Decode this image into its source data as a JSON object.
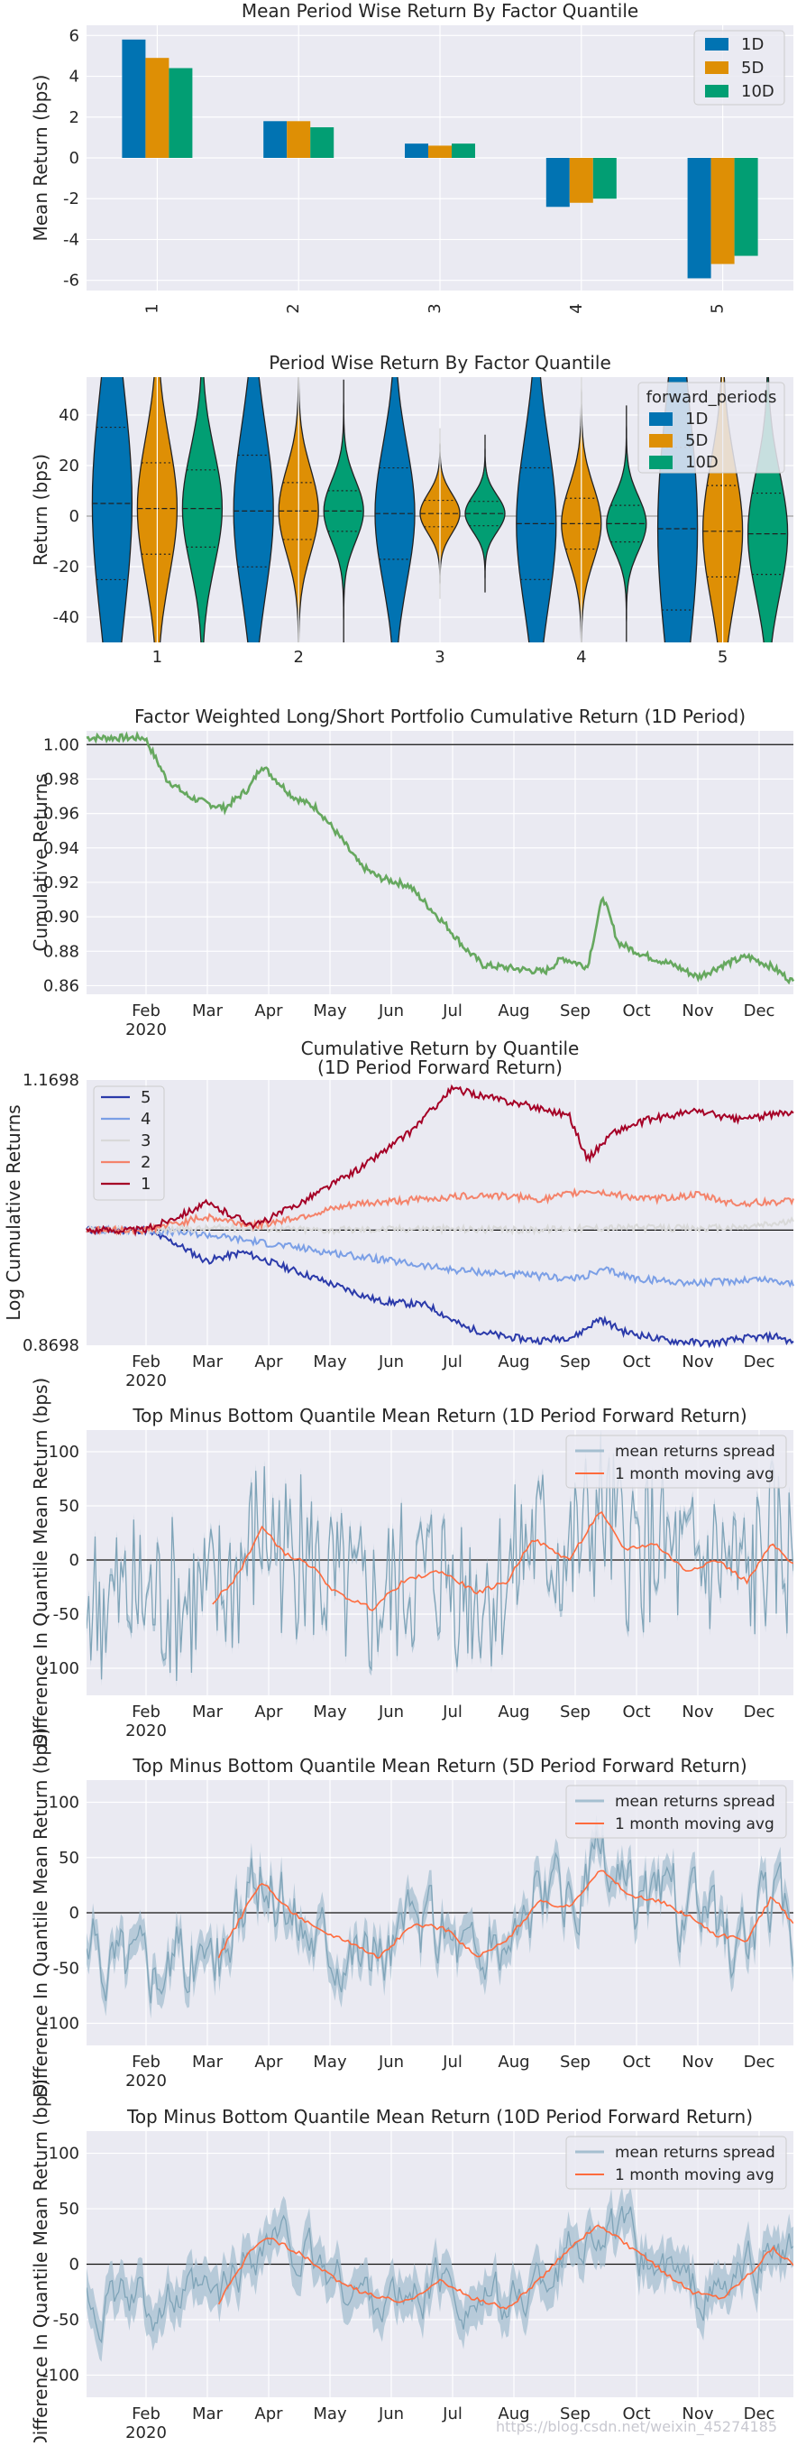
{
  "colors": {
    "bg": "#eaeaf2",
    "grid": "#ffffff",
    "text": "#262626",
    "q1D": "#0173b2",
    "q5D": "#de8f05",
    "q10D": "#029e73",
    "cum": "#66a85f",
    "spread": "#7fa4b8",
    "band": "#a5bfd0",
    "mavg": "#ff6b3d",
    "quant": [
      "#a50026",
      "#f4836b",
      "#d9d9d9",
      "#7b9fe6",
      "#2b3aaa"
    ]
  },
  "watermark": "https://blog.csdn.net/weixin_45274185",
  "chart_data": [
    {
      "type": "bar",
      "title": "Mean Period Wise Return By Factor Quantile",
      "ylabel": "Mean Return (bps)",
      "xlabel": "",
      "categories": [
        "1",
        "2",
        "3",
        "4",
        "5"
      ],
      "series": [
        {
          "name": "1D",
          "values": [
            5.8,
            1.8,
            0.7,
            -2.4,
            -5.9
          ]
        },
        {
          "name": "5D",
          "values": [
            4.9,
            1.8,
            0.6,
            -2.2,
            -5.2
          ]
        },
        {
          "name": "10D",
          "values": [
            4.4,
            1.5,
            0.7,
            -2.0,
            -4.8
          ]
        }
      ],
      "ylim": [
        -6.5,
        6.5
      ],
      "yticks": [
        "-6",
        "-4",
        "-2",
        "0",
        "2",
        "4",
        "6"
      ],
      "legend": "top-right"
    },
    {
      "type": "violin",
      "title": "Period Wise Return By Factor Quantile",
      "ylabel": "Return (bps)",
      "categories": [
        "1",
        "2",
        "3",
        "4",
        "5"
      ],
      "series_names": [
        "1D",
        "5D",
        "10D"
      ],
      "legend_title": "forward_periods",
      "ylim": [
        -50,
        55
      ],
      "yticks": [
        "-40",
        "-20",
        "0",
        "20",
        "40"
      ],
      "spread": [
        [
          75,
          45,
          38
        ],
        [
          55,
          28,
          20
        ],
        [
          45,
          13,
          12
        ],
        [
          55,
          25,
          18
        ],
        [
          80,
          45,
          40
        ]
      ],
      "center": [
        [
          5,
          3,
          3
        ],
        [
          2,
          2,
          2
        ],
        [
          1,
          1,
          1
        ],
        [
          -3,
          -3,
          -3
        ],
        [
          -5,
          -6,
          -7
        ]
      ],
      "legend": "top-right"
    },
    {
      "type": "line",
      "title": "Factor Weighted Long/Short Portfolio Cumulative Return (1D Period)",
      "ylabel": "Cumulative Returns",
      "ylim": [
        0.855,
        1.008
      ],
      "yticks": [
        "0.86",
        "0.88",
        "0.90",
        "0.92",
        "0.94",
        "0.96",
        "0.98",
        "1.00"
      ],
      "xticks": [
        "Feb\n2020",
        "Mar",
        "Apr",
        "May",
        "Jun",
        "Jul",
        "Aug",
        "Sep",
        "Oct",
        "Nov",
        "Dec"
      ],
      "keypoints": [
        [
          0,
          1.004
        ],
        [
          0.1,
          0.997
        ],
        [
          0.35,
          0.98
        ],
        [
          0.7,
          0.97
        ],
        [
          1.0,
          0.966
        ],
        [
          1.3,
          0.963
        ],
        [
          1.7,
          0.975
        ],
        [
          1.9,
          0.988
        ],
        [
          2.4,
          0.97
        ],
        [
          2.8,
          0.963
        ],
        [
          3.2,
          0.945
        ],
        [
          3.5,
          0.93
        ],
        [
          3.8,
          0.923
        ],
        [
          4.3,
          0.918
        ],
        [
          4.9,
          0.895
        ],
        [
          5.2,
          0.882
        ],
        [
          5.5,
          0.872
        ],
        [
          6.0,
          0.87
        ],
        [
          6.5,
          0.868
        ],
        [
          6.8,
          0.876
        ],
        [
          7.2,
          0.871
        ],
        [
          7.45,
          0.912
        ],
        [
          7.7,
          0.885
        ],
        [
          8.1,
          0.878
        ],
        [
          8.6,
          0.872
        ],
        [
          9.0,
          0.865
        ],
        [
          9.4,
          0.872
        ],
        [
          9.8,
          0.877
        ],
        [
          10.2,
          0.871
        ],
        [
          10.55,
          0.862
        ]
      ]
    },
    {
      "type": "line",
      "title": "Cumulative Return by Quantile",
      "title2": "(1D Period Forward Return)",
      "ylabel": "Log Cumulative Returns",
      "ylim": [
        0.8698,
        1.1698
      ],
      "yticks": [
        "0.8698",
        "1.1698"
      ],
      "xticks": [
        "Feb\n2020",
        "Mar",
        "Apr",
        "May",
        "Jun",
        "Jul",
        "Aug",
        "Sep",
        "Oct",
        "Nov",
        "Dec"
      ],
      "legend_labels": [
        "5",
        "4",
        "3",
        "2",
        "1"
      ],
      "series": [
        {
          "name": "1",
          "keypoints": [
            [
              0,
              1.0
            ],
            [
              1.0,
              1.03
            ],
            [
              1.8,
              1.005
            ],
            [
              2.5,
              1.03
            ],
            [
              3.5,
              1.07
            ],
            [
              4.3,
              1.11
            ],
            [
              5.0,
              1.16
            ],
            [
              5.6,
              1.15
            ],
            [
              6.3,
              1.14
            ],
            [
              6.9,
              1.13
            ],
            [
              7.2,
              1.08
            ],
            [
              7.6,
              1.11
            ],
            [
              8.2,
              1.125
            ],
            [
              9.0,
              1.135
            ],
            [
              9.6,
              1.125
            ],
            [
              10.2,
              1.13
            ],
            [
              10.55,
              1.135
            ]
          ]
        },
        {
          "name": "2",
          "keypoints": [
            [
              0,
              1.0
            ],
            [
              1.0,
              1.015
            ],
            [
              1.8,
              1.005
            ],
            [
              2.5,
              1.015
            ],
            [
              3.5,
              1.03
            ],
            [
              4.5,
              1.035
            ],
            [
              5.5,
              1.04
            ],
            [
              6.5,
              1.035
            ],
            [
              7.2,
              1.045
            ],
            [
              8.2,
              1.035
            ],
            [
              9.0,
              1.04
            ],
            [
              9.6,
              1.03
            ],
            [
              10.55,
              1.033
            ]
          ]
        },
        {
          "name": "3",
          "keypoints": [
            [
              0,
              1.0
            ],
            [
              1.5,
              1.003
            ],
            [
              3.0,
              1.0
            ],
            [
              4.5,
              1.002
            ],
            [
              6.0,
              1.0
            ],
            [
              7.5,
              1.003
            ],
            [
              9.0,
              1.002
            ],
            [
              9.7,
              1.003
            ],
            [
              10.55,
              1.01
            ]
          ]
        },
        {
          "name": "4",
          "keypoints": [
            [
              0,
              1.0
            ],
            [
              1.0,
              0.995
            ],
            [
              2.0,
              0.985
            ],
            [
              3.0,
              0.975
            ],
            [
              4.0,
              0.965
            ],
            [
              5.0,
              0.955
            ],
            [
              6.0,
              0.95
            ],
            [
              7.0,
              0.945
            ],
            [
              7.5,
              0.955
            ],
            [
              8.0,
              0.945
            ],
            [
              9.0,
              0.94
            ],
            [
              10.0,
              0.945
            ],
            [
              10.55,
              0.94
            ]
          ]
        },
        {
          "name": "5",
          "keypoints": [
            [
              0,
              1.0
            ],
            [
              0.5,
              0.985
            ],
            [
              1.0,
              0.965
            ],
            [
              1.6,
              0.975
            ],
            [
              2.2,
              0.96
            ],
            [
              3.0,
              0.94
            ],
            [
              3.8,
              0.92
            ],
            [
              4.6,
              0.915
            ],
            [
              5.2,
              0.89
            ],
            [
              5.8,
              0.88
            ],
            [
              6.4,
              0.875
            ],
            [
              7.0,
              0.88
            ],
            [
              7.4,
              0.9
            ],
            [
              7.8,
              0.885
            ],
            [
              8.5,
              0.875
            ],
            [
              9.2,
              0.872
            ],
            [
              9.8,
              0.878
            ],
            [
              10.3,
              0.88
            ],
            [
              10.55,
              0.872
            ]
          ]
        }
      ]
    },
    {
      "type": "line",
      "title": "Top Minus Bottom Quantile Mean Return (1D Period Forward Return)",
      "ylabel": "Difference In Quantile Mean Return (bps)",
      "ylim": [
        -125,
        120
      ],
      "yticks": [
        "-100",
        "-50",
        "0",
        "50",
        "100"
      ],
      "xticks": [
        "Feb\n2020",
        "Mar",
        "Apr",
        "May",
        "Jun",
        "Jul",
        "Aug",
        "Sep",
        "Oct",
        "Nov",
        "Dec"
      ],
      "legend_labels": [
        "mean returns spread",
        "1 month moving avg"
      ],
      "amp": 80,
      "band": 6,
      "mavg": [
        [
          1.1,
          -40
        ],
        [
          1.5,
          -15
        ],
        [
          1.9,
          30
        ],
        [
          2.3,
          5
        ],
        [
          2.7,
          -5
        ],
        [
          3.1,
          -30
        ],
        [
          3.7,
          -45
        ],
        [
          4.2,
          -20
        ],
        [
          4.8,
          -10
        ],
        [
          5.4,
          -30
        ],
        [
          5.9,
          -20
        ],
        [
          6.3,
          20
        ],
        [
          6.9,
          0
        ],
        [
          7.4,
          45
        ],
        [
          7.8,
          10
        ],
        [
          8.3,
          15
        ],
        [
          8.8,
          -10
        ],
        [
          9.3,
          0
        ],
        [
          9.8,
          -20
        ],
        [
          10.2,
          15
        ],
        [
          10.55,
          -5
        ]
      ]
    },
    {
      "type": "line",
      "title": "Top Minus Bottom Quantile Mean Return (5D Period Forward Return)",
      "ylabel": "Difference In Quantile Mean Return (bps)",
      "ylim": [
        -120,
        120
      ],
      "yticks": [
        "-100",
        "-50",
        "0",
        "50",
        "100"
      ],
      "xticks": [
        "Feb\n2020",
        "Mar",
        "Apr",
        "May",
        "Jun",
        "Jul",
        "Aug",
        "Sep",
        "Oct",
        "Nov",
        "Dec"
      ],
      "legend_labels": [
        "mean returns spread",
        "1 month moving avg"
      ],
      "amp": 40,
      "band": 14,
      "mavg": [
        [
          1.2,
          -40
        ],
        [
          1.6,
          0
        ],
        [
          1.9,
          28
        ],
        [
          2.3,
          5
        ],
        [
          2.8,
          -15
        ],
        [
          3.3,
          -25
        ],
        [
          3.8,
          -40
        ],
        [
          4.4,
          -10
        ],
        [
          4.9,
          -15
        ],
        [
          5.4,
          -40
        ],
        [
          5.9,
          -25
        ],
        [
          6.4,
          10
        ],
        [
          6.9,
          5
        ],
        [
          7.4,
          40
        ],
        [
          7.9,
          15
        ],
        [
          8.4,
          10
        ],
        [
          8.9,
          -5
        ],
        [
          9.3,
          -20
        ],
        [
          9.8,
          -25
        ],
        [
          10.2,
          15
        ],
        [
          10.55,
          -10
        ]
      ]
    },
    {
      "type": "line",
      "title": "Top Minus Bottom Quantile Mean Return (10D Period Forward Return)",
      "ylabel": "Difference In Quantile Mean Return (bps)",
      "ylim": [
        -120,
        120
      ],
      "yticks": [
        "-100",
        "-50",
        "0",
        "50",
        "100"
      ],
      "xticks": [
        "Feb\n2020",
        "Mar",
        "Apr",
        "May",
        "Jun",
        "Jul",
        "Aug",
        "Sep",
        "Oct",
        "Nov",
        "Dec"
      ],
      "legend_labels": [
        "mean returns spread",
        "1 month moving avg"
      ],
      "amp": 35,
      "band": 18,
      "mavg": [
        [
          1.2,
          -35
        ],
        [
          1.7,
          10
        ],
        [
          2.0,
          25
        ],
        [
          2.5,
          10
        ],
        [
          3.0,
          -10
        ],
        [
          3.5,
          -25
        ],
        [
          4.2,
          -35
        ],
        [
          4.8,
          -15
        ],
        [
          5.3,
          -30
        ],
        [
          5.9,
          -40
        ],
        [
          6.5,
          -10
        ],
        [
          7.0,
          20
        ],
        [
          7.4,
          35
        ],
        [
          7.9,
          15
        ],
        [
          8.4,
          -5
        ],
        [
          8.9,
          -25
        ],
        [
          9.4,
          -30
        ],
        [
          9.9,
          -5
        ],
        [
          10.2,
          15
        ],
        [
          10.55,
          0
        ]
      ]
    }
  ]
}
